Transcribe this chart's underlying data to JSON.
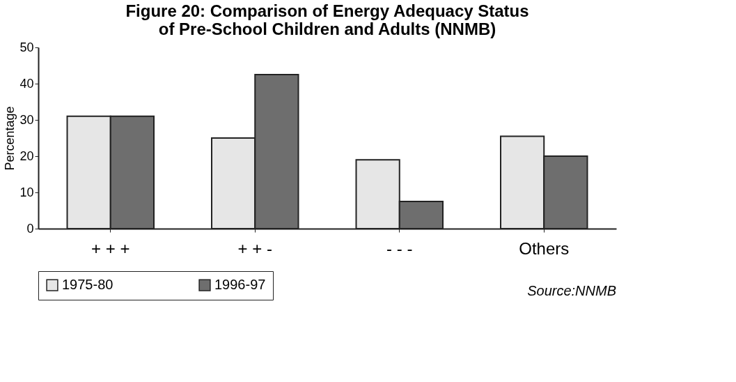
{
  "chart_data": {
    "type": "bar",
    "title": [
      "Figure 20: Comparison of Energy Adequacy Status",
      "of Pre-School Children and Adults (NNMB)"
    ],
    "ylabel": "Percentage",
    "categories": [
      "+ + +",
      "+ + -",
      "- - -",
      "Others"
    ],
    "series": [
      {
        "name": "1975-80",
        "color": "#e6e6e6",
        "values": [
          31,
          25,
          19,
          25.5
        ]
      },
      {
        "name": "1996-97",
        "color": "#6e6e6e",
        "values": [
          31,
          42.5,
          7.5,
          20
        ]
      }
    ],
    "ylim": [
      0,
      50
    ],
    "yticks": [
      0,
      10,
      20,
      30,
      40,
      50
    ],
    "grid": false,
    "legend": "bottom",
    "annotations": [
      "Source:NNMB"
    ]
  }
}
